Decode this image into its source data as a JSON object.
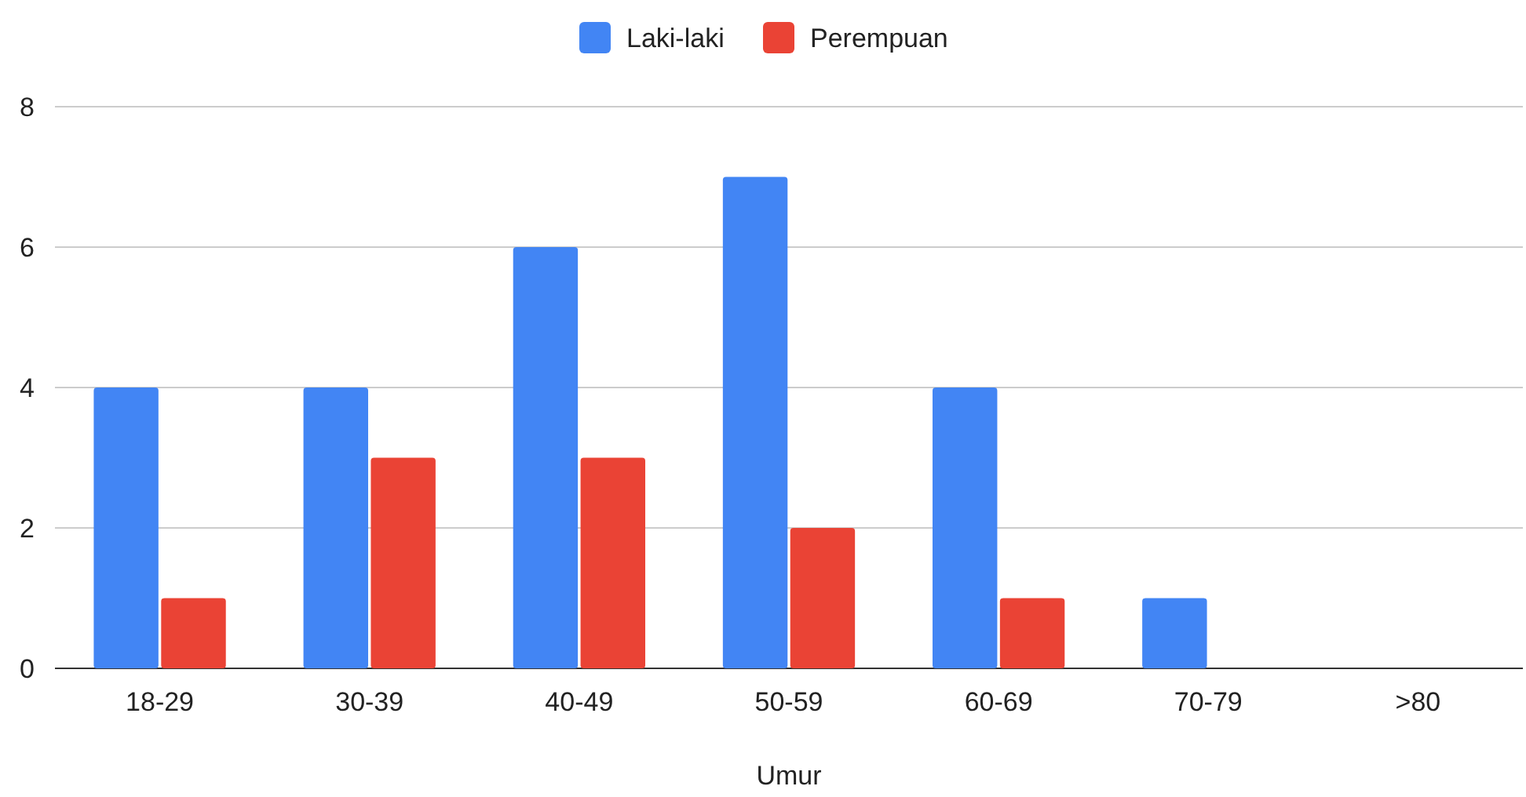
{
  "chart_data": {
    "type": "bar",
    "xlabel": "Umur",
    "categories": [
      "18-29",
      "30-39",
      "40-49",
      "50-59",
      "60-69",
      "70-79",
      ">80"
    ],
    "series": [
      {
        "name": "Laki-laki",
        "color": "#4285f4",
        "values": [
          4,
          4,
          6,
          7,
          4,
          1,
          0
        ]
      },
      {
        "name": "Perempuan",
        "color": "#ea4335",
        "values": [
          1,
          3,
          3,
          2,
          1,
          0,
          0
        ]
      }
    ],
    "ylim": [
      0,
      8
    ],
    "yticks": [
      0,
      2,
      4,
      6,
      8
    ],
    "grid": "y",
    "legend": "top"
  }
}
